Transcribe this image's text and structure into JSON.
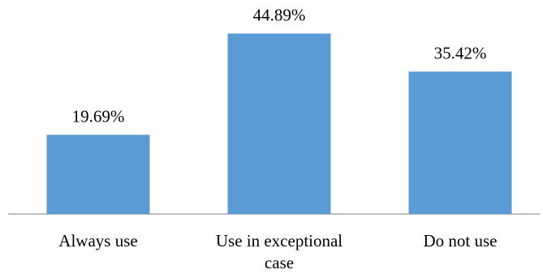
{
  "chart_data": {
    "type": "bar",
    "categories": [
      "Always use",
      "Use in exceptional case",
      "Do not use"
    ],
    "category_lines": [
      [
        "Always use"
      ],
      [
        "Use in exceptional",
        "case"
      ],
      [
        "Do not use"
      ]
    ],
    "values": [
      19.69,
      44.89,
      35.42
    ],
    "data_labels": [
      "19.69%",
      "44.89%",
      "35.42%"
    ],
    "ylim": [
      0,
      50
    ],
    "grid": false,
    "legend": "none",
    "bar_color": "#5b9bd5",
    "axis_color": "#808080"
  }
}
